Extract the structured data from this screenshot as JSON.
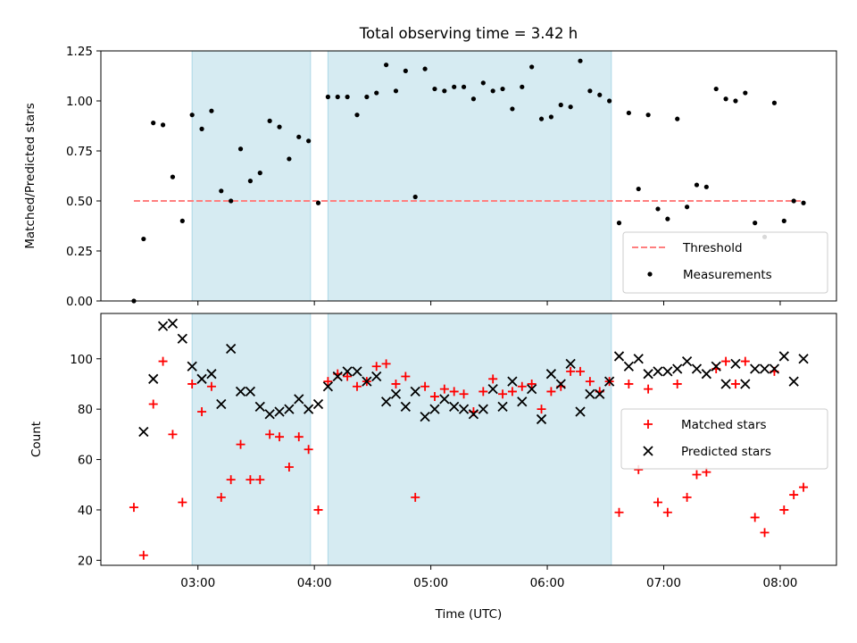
{
  "title": "Total observing time = 3.42 h",
  "xlabel": "Time (UTC)",
  "colors": {
    "shade": "#add8e6",
    "threshold": "#ff7f7f",
    "measurement": "#000000",
    "matched": "#ff0000",
    "predicted": "#000000"
  },
  "chart_data": [
    {
      "type": "scatter",
      "ylabel": "Matched/Predicted stars",
      "ylim": [
        0,
        1.25
      ],
      "xlim": [
        "02:10",
        "08:29"
      ],
      "yticks": [
        "0.00",
        "0.25",
        "0.50",
        "0.75",
        "1.00",
        "1.25"
      ],
      "xticks": [
        "03:00",
        "04:00",
        "05:00",
        "06:00",
        "07:00",
        "08:00"
      ],
      "shaded_intervals": [
        [
          "02:57",
          "03:58"
        ],
        [
          "04:07",
          "06:33"
        ]
      ],
      "threshold": {
        "name": "Threshold",
        "value": 0.5,
        "x_range": [
          "02:27",
          "08:12"
        ]
      },
      "legend": {
        "position": "lower right",
        "entries": [
          "Threshold",
          "Measurements"
        ]
      },
      "series": [
        {
          "name": "Measurements",
          "x": [
            "02:27",
            "02:32",
            "02:37",
            "02:42",
            "02:47",
            "02:52",
            "02:57",
            "03:02",
            "03:07",
            "03:12",
            "03:17",
            "03:22",
            "03:27",
            "03:32",
            "03:37",
            "03:42",
            "03:47",
            "03:52",
            "03:57",
            "04:02",
            "04:07",
            "04:12",
            "04:17",
            "04:22",
            "04:27",
            "04:32",
            "04:37",
            "04:42",
            "04:47",
            "04:52",
            "04:57",
            "05:02",
            "05:07",
            "05:12",
            "05:17",
            "05:22",
            "05:27",
            "05:32",
            "05:37",
            "05:42",
            "05:47",
            "05:52",
            "05:57",
            "06:02",
            "06:07",
            "06:12",
            "06:17",
            "06:22",
            "06:27",
            "06:32",
            "06:37",
            "06:42",
            "06:47",
            "06:52",
            "06:57",
            "07:02",
            "07:07",
            "07:12",
            "07:17",
            "07:22",
            "07:27",
            "07:32",
            "07:37",
            "07:42",
            "07:47",
            "07:52",
            "07:57",
            "08:02",
            "08:07",
            "08:12"
          ],
          "y": [
            0.0,
            0.31,
            0.89,
            0.88,
            0.62,
            0.4,
            0.93,
            0.86,
            0.95,
            0.55,
            0.5,
            0.76,
            0.6,
            0.64,
            0.9,
            0.87,
            0.71,
            0.82,
            0.8,
            0.49,
            1.02,
            1.02,
            1.02,
            0.93,
            1.02,
            1.04,
            1.18,
            1.05,
            1.15,
            0.52,
            1.16,
            1.06,
            1.05,
            1.07,
            1.07,
            1.01,
            1.09,
            1.05,
            1.06,
            0.96,
            1.07,
            1.17,
            0.91,
            0.92,
            0.98,
            0.97,
            1.2,
            1.05,
            1.03,
            1.0,
            0.39,
            0.94,
            0.56,
            0.93,
            0.46,
            0.41,
            0.91,
            0.47,
            0.58,
            0.57,
            1.06,
            1.01,
            1.0,
            1.04,
            0.39,
            0.32,
            0.99,
            0.4,
            0.5,
            0.49
          ]
        }
      ]
    },
    {
      "type": "scatter",
      "ylabel": "Count",
      "ylim": [
        18,
        118
      ],
      "xlim": [
        "02:10",
        "08:29"
      ],
      "yticks": [
        "20",
        "40",
        "60",
        "80",
        "100"
      ],
      "xticks": [
        "03:00",
        "04:00",
        "05:00",
        "06:00",
        "07:00",
        "08:00"
      ],
      "shaded_intervals": [
        [
          "02:57",
          "03:58"
        ],
        [
          "04:07",
          "06:33"
        ]
      ],
      "legend": {
        "position": "center right",
        "entries": [
          "Matched stars",
          "Predicted stars"
        ]
      },
      "series": [
        {
          "name": "Matched stars",
          "x": [
            "02:27",
            "02:32",
            "02:37",
            "02:42",
            "02:47",
            "02:52",
            "02:57",
            "03:02",
            "03:07",
            "03:12",
            "03:17",
            "03:22",
            "03:27",
            "03:32",
            "03:37",
            "03:42",
            "03:47",
            "03:52",
            "03:57",
            "04:02",
            "04:07",
            "04:12",
            "04:17",
            "04:22",
            "04:27",
            "04:32",
            "04:37",
            "04:42",
            "04:47",
            "04:52",
            "04:57",
            "05:02",
            "05:07",
            "05:12",
            "05:17",
            "05:22",
            "05:27",
            "05:32",
            "05:37",
            "05:42",
            "05:47",
            "05:52",
            "05:57",
            "06:02",
            "06:07",
            "06:12",
            "06:17",
            "06:22",
            "06:27",
            "06:32",
            "06:37",
            "06:42",
            "06:47",
            "06:52",
            "06:57",
            "07:02",
            "07:07",
            "07:12",
            "07:17",
            "07:22",
            "07:27",
            "07:32",
            "07:37",
            "07:42",
            "07:47",
            "07:52",
            "07:57",
            "08:02",
            "08:07",
            "08:12"
          ],
          "y": [
            41,
            22,
            82,
            99,
            70,
            43,
            90,
            79,
            89,
            45,
            52,
            66,
            52,
            52,
            70,
            69,
            57,
            69,
            64,
            40,
            91,
            94,
            93,
            89,
            91,
            97,
            98,
            90,
            93,
            45,
            89,
            85,
            88,
            87,
            86,
            79,
            87,
            92,
            86,
            87,
            89,
            90,
            80,
            87,
            89,
            95,
            95,
            91,
            87,
            91,
            39,
            90,
            56,
            88,
            43,
            39,
            90,
            45,
            54,
            55,
            96,
            99,
            90,
            99,
            37,
            31,
            95,
            40,
            46,
            49
          ]
        },
        {
          "name": "Predicted stars",
          "x": [
            "02:32",
            "02:37",
            "02:42",
            "02:47",
            "02:52",
            "02:57",
            "03:02",
            "03:07",
            "03:12",
            "03:17",
            "03:22",
            "03:27",
            "03:32",
            "03:37",
            "03:42",
            "03:47",
            "03:52",
            "03:57",
            "04:02",
            "04:07",
            "04:12",
            "04:17",
            "04:22",
            "04:27",
            "04:32",
            "04:37",
            "04:42",
            "04:47",
            "04:52",
            "04:57",
            "05:02",
            "05:07",
            "05:12",
            "05:17",
            "05:22",
            "05:27",
            "05:32",
            "05:37",
            "05:42",
            "05:47",
            "05:52",
            "05:57",
            "06:02",
            "06:07",
            "06:12",
            "06:17",
            "06:22",
            "06:27",
            "06:32",
            "06:37",
            "06:42",
            "06:47",
            "06:52",
            "06:57",
            "07:02",
            "07:07",
            "07:12",
            "07:17",
            "07:22",
            "07:27",
            "07:32",
            "07:37",
            "07:42",
            "07:47",
            "07:52",
            "07:57",
            "08:02",
            "08:07",
            "08:12"
          ],
          "y": [
            71,
            92,
            113,
            114,
            108,
            97,
            92,
            94,
            82,
            104,
            87,
            87,
            81,
            78,
            79,
            80,
            84,
            80,
            82,
            89,
            93,
            95,
            95,
            91,
            93,
            83,
            86,
            81,
            87,
            77,
            80,
            84,
            81,
            80,
            78,
            80,
            88,
            81,
            91,
            83,
            88,
            76,
            94,
            90,
            98,
            79,
            86,
            86,
            91,
            101,
            97,
            100,
            94,
            95,
            95,
            96,
            99,
            96,
            94,
            97,
            90,
            98,
            90,
            96,
            96,
            96,
            101,
            91,
            100
          ]
        }
      ]
    }
  ]
}
